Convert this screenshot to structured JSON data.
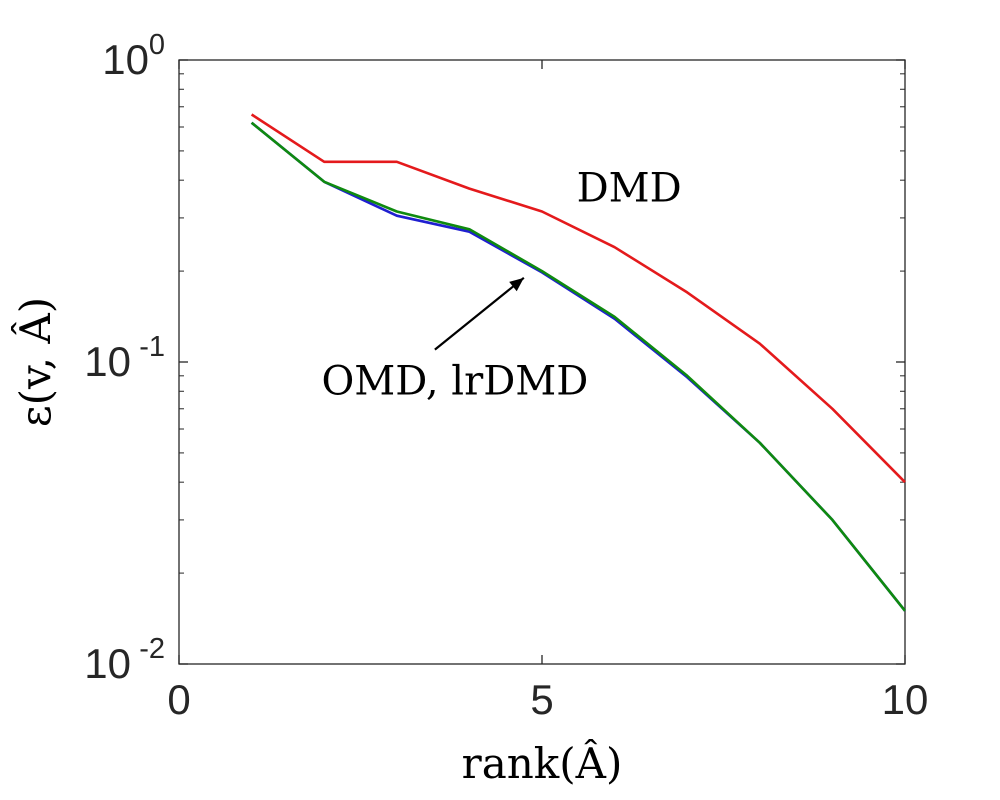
{
  "chart_data": {
    "type": "line",
    "title": "",
    "xlabel": "rank(Â)",
    "ylabel": "ε(v, Â)",
    "xscale": "linear",
    "yscale": "log",
    "xlim": [
      0,
      10
    ],
    "ylim": [
      0.01,
      1
    ],
    "x_ticks": [
      {
        "value": 0,
        "label": "0"
      },
      {
        "value": 5,
        "label": "5"
      },
      {
        "value": 10,
        "label": "10"
      }
    ],
    "y_ticks": [
      {
        "value": 1,
        "base": "10",
        "exp": "0"
      },
      {
        "value": 0.1,
        "base": "10",
        "exp": "-1"
      },
      {
        "value": 0.01,
        "base": "10",
        "exp": "-2"
      }
    ],
    "series": [
      {
        "name": "DMD",
        "color": "#e41a1c",
        "x": [
          1,
          2,
          3,
          4,
          5,
          6,
          7,
          8,
          9,
          10
        ],
        "y": [
          0.66,
          0.46,
          0.46,
          0.375,
          0.315,
          0.24,
          0.17,
          0.115,
          0.07,
          0.04
        ]
      },
      {
        "name": "OMD",
        "color": "#1f1fd0",
        "x": [
          1,
          2,
          3,
          4,
          5,
          6,
          7,
          8,
          9,
          10
        ],
        "y": [
          0.62,
          0.395,
          0.305,
          0.27,
          0.198,
          0.139,
          0.089,
          0.054,
          0.03,
          0.015
        ]
      },
      {
        "name": "lrDMD",
        "color": "#0f8a0f",
        "x": [
          1,
          2,
          3,
          4,
          5,
          6,
          7,
          8,
          9,
          10
        ],
        "y": [
          0.62,
          0.395,
          0.315,
          0.275,
          0.2,
          0.141,
          0.09,
          0.054,
          0.03,
          0.015
        ]
      }
    ],
    "annotations": [
      {
        "text": "DMD",
        "x": 6.2,
        "y": 0.34
      },
      {
        "text": "OMD, lrDMD",
        "x": 3.8,
        "y": 0.078,
        "arrow_to": {
          "x": 4.75,
          "y": 0.19
        }
      }
    ],
    "grid": false,
    "box": true
  }
}
